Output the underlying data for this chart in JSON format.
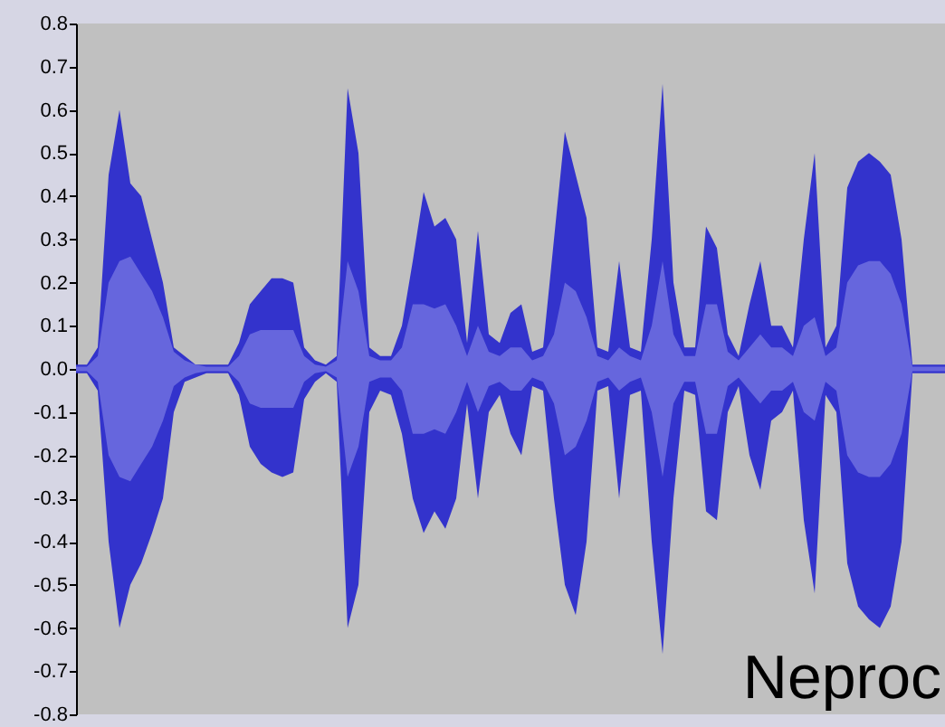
{
  "chart_data": {
    "type": "area",
    "categories": [
      null,
      null,
      null,
      null,
      null,
      null,
      null,
      null,
      null,
      null,
      null,
      null,
      null,
      null,
      null,
      null,
      null,
      null,
      null,
      null,
      null,
      null,
      null,
      null,
      null,
      null,
      null,
      null,
      null,
      null,
      null,
      null,
      null,
      null,
      null,
      null,
      null,
      null,
      null,
      null,
      null,
      null,
      null,
      null,
      null,
      null,
      null,
      null,
      null,
      null,
      null,
      null,
      null,
      null,
      null,
      null,
      null,
      null,
      null,
      null,
      null,
      null,
      null,
      null,
      null,
      null,
      null,
      null,
      null,
      null,
      null,
      null,
      null,
      null,
      null,
      null,
      null,
      null,
      null,
      null,
      null
    ],
    "series": [
      {
        "color": "#3333cc",
        "values": [
          0.01,
          0.01,
          0.05,
          0.45,
          0.6,
          0.43,
          0.4,
          0.3,
          0.2,
          0.05,
          0.03,
          0.01,
          0.01,
          0.01,
          0.01,
          0.06,
          0.15,
          0.18,
          0.21,
          0.21,
          0.2,
          0.05,
          0.02,
          0.01,
          0.03,
          0.65,
          0.5,
          0.05,
          0.03,
          0.03,
          0.1,
          0.25,
          0.41,
          0.33,
          0.35,
          0.3,
          0.06,
          0.32,
          0.08,
          0.06,
          0.13,
          0.15,
          0.04,
          0.05,
          0.3,
          0.55,
          0.45,
          0.35,
          0.05,
          0.04,
          0.25,
          0.05,
          0.04,
          0.3,
          0.66,
          0.2,
          0.05,
          0.05,
          0.33,
          0.28,
          0.08,
          0.03,
          0.15,
          0.25,
          0.1,
          0.1,
          0.05,
          0.3,
          0.5,
          0.05,
          0.1,
          0.42,
          0.48,
          0.5,
          0.48,
          0.45,
          0.3,
          0.01,
          0.01,
          0.01,
          0.01
        ]
      },
      {
        "color": "#3333cc",
        "values": [
          -0.01,
          -0.01,
          -0.05,
          -0.4,
          -0.6,
          -0.5,
          -0.45,
          -0.38,
          -0.3,
          -0.1,
          -0.03,
          -0.02,
          -0.01,
          -0.01,
          -0.01,
          -0.06,
          -0.18,
          -0.22,
          -0.24,
          -0.25,
          -0.24,
          -0.07,
          -0.03,
          -0.01,
          -0.03,
          -0.6,
          -0.5,
          -0.1,
          -0.05,
          -0.06,
          -0.15,
          -0.3,
          -0.38,
          -0.33,
          -0.37,
          -0.3,
          -0.08,
          -0.3,
          -0.1,
          -0.06,
          -0.15,
          -0.2,
          -0.04,
          -0.05,
          -0.3,
          -0.5,
          -0.57,
          -0.4,
          -0.05,
          -0.04,
          -0.3,
          -0.06,
          -0.05,
          -0.4,
          -0.66,
          -0.3,
          -0.05,
          -0.06,
          -0.33,
          -0.35,
          -0.1,
          -0.04,
          -0.2,
          -0.28,
          -0.12,
          -0.1,
          -0.05,
          -0.35,
          -0.52,
          -0.06,
          -0.1,
          -0.45,
          -0.55,
          -0.58,
          -0.6,
          -0.55,
          -0.4,
          -0.01,
          -0.01,
          -0.01,
          -0.01
        ]
      },
      {
        "color": "#6666dd",
        "values": [
          0.005,
          0.005,
          0.03,
          0.2,
          0.25,
          0.26,
          0.22,
          0.18,
          0.12,
          0.04,
          0.02,
          0.01,
          0.005,
          0.005,
          0.005,
          0.03,
          0.08,
          0.09,
          0.09,
          0.09,
          0.09,
          0.03,
          0.01,
          0.005,
          0.02,
          0.25,
          0.18,
          0.03,
          0.02,
          0.02,
          0.05,
          0.15,
          0.15,
          0.14,
          0.15,
          0.1,
          0.03,
          0.1,
          0.04,
          0.03,
          0.05,
          0.05,
          0.02,
          0.03,
          0.08,
          0.2,
          0.18,
          0.12,
          0.03,
          0.02,
          0.05,
          0.03,
          0.02,
          0.1,
          0.25,
          0.08,
          0.03,
          0.03,
          0.15,
          0.15,
          0.04,
          0.02,
          0.05,
          0.08,
          0.05,
          0.05,
          0.03,
          0.1,
          0.12,
          0.03,
          0.05,
          0.2,
          0.24,
          0.25,
          0.25,
          0.22,
          0.15,
          0.005,
          0.005,
          0.005,
          0.005
        ]
      },
      {
        "color": "#6666dd",
        "values": [
          -0.005,
          -0.005,
          -0.03,
          -0.2,
          -0.25,
          -0.26,
          -0.22,
          -0.18,
          -0.12,
          -0.04,
          -0.02,
          -0.01,
          -0.005,
          -0.005,
          -0.005,
          -0.03,
          -0.08,
          -0.09,
          -0.09,
          -0.09,
          -0.09,
          -0.03,
          -0.01,
          -0.005,
          -0.02,
          -0.25,
          -0.18,
          -0.03,
          -0.02,
          -0.02,
          -0.05,
          -0.15,
          -0.15,
          -0.14,
          -0.15,
          -0.1,
          -0.03,
          -0.1,
          -0.04,
          -0.03,
          -0.05,
          -0.05,
          -0.02,
          -0.03,
          -0.08,
          -0.2,
          -0.18,
          -0.12,
          -0.03,
          -0.02,
          -0.05,
          -0.03,
          -0.02,
          -0.1,
          -0.25,
          -0.08,
          -0.03,
          -0.03,
          -0.15,
          -0.15,
          -0.04,
          -0.02,
          -0.05,
          -0.08,
          -0.05,
          -0.05,
          -0.03,
          -0.1,
          -0.12,
          -0.03,
          -0.05,
          -0.2,
          -0.24,
          -0.25,
          -0.25,
          -0.22,
          -0.15,
          -0.005,
          -0.005,
          -0.005,
          -0.005
        ]
      }
    ],
    "ylim": [
      -0.8,
      0.8
    ],
    "yticks": [
      0.8,
      0.7,
      0.6,
      0.5,
      0.4,
      0.3,
      0.2,
      0.1,
      {
        "value": 0,
        "label": "0.0"
      },
      -0.1,
      -0.2,
      -0.3,
      -0.4,
      -0.5,
      -0.6,
      -0.7,
      -0.8
    ],
    "annotations": [
      "Neproc"
    ]
  }
}
